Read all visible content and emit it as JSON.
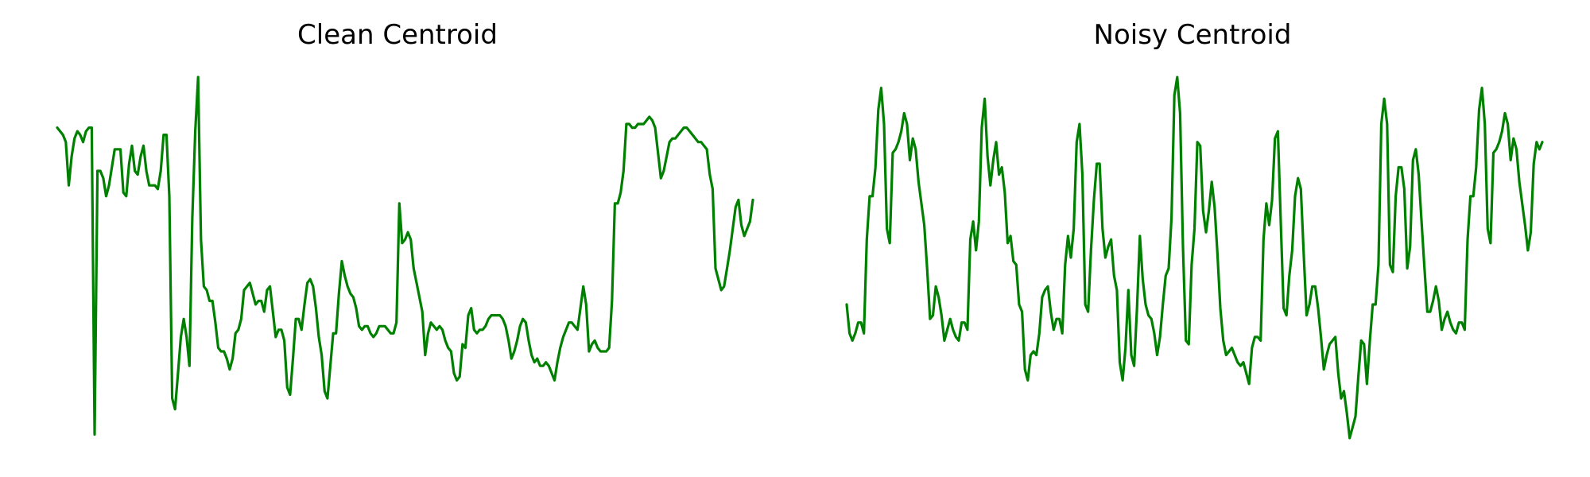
{
  "chart_data": [
    {
      "type": "line",
      "title": "Clean Centroid",
      "xlabel": "",
      "ylabel": "",
      "axes_visible": false,
      "grid": false,
      "color": "#008000",
      "ylim": [
        0,
        1
      ],
      "y": [
        0.86,
        0.85,
        0.84,
        0.82,
        0.7,
        0.78,
        0.83,
        0.85,
        0.84,
        0.82,
        0.85,
        0.86,
        0.86,
        0.01,
        0.74,
        0.74,
        0.72,
        0.67,
        0.7,
        0.75,
        0.8,
        0.8,
        0.8,
        0.68,
        0.67,
        0.76,
        0.81,
        0.74,
        0.73,
        0.78,
        0.81,
        0.74,
        0.7,
        0.7,
        0.7,
        0.69,
        0.74,
        0.84,
        0.84,
        0.67,
        0.11,
        0.08,
        0.18,
        0.28,
        0.33,
        0.28,
        0.2,
        0.61,
        0.85,
        1.0,
        0.55,
        0.42,
        0.41,
        0.38,
        0.38,
        0.32,
        0.25,
        0.24,
        0.24,
        0.22,
        0.19,
        0.22,
        0.29,
        0.3,
        0.33,
        0.41,
        0.42,
        0.43,
        0.4,
        0.37,
        0.38,
        0.38,
        0.35,
        0.41,
        0.42,
        0.35,
        0.28,
        0.3,
        0.3,
        0.27,
        0.14,
        0.12,
        0.22,
        0.33,
        0.33,
        0.3,
        0.37,
        0.43,
        0.44,
        0.42,
        0.36,
        0.28,
        0.23,
        0.13,
        0.11,
        0.2,
        0.29,
        0.29,
        0.4,
        0.49,
        0.45,
        0.42,
        0.4,
        0.39,
        0.36,
        0.31,
        0.3,
        0.31,
        0.31,
        0.29,
        0.28,
        0.29,
        0.31,
        0.31,
        0.31,
        0.3,
        0.29,
        0.29,
        0.32,
        0.65,
        0.54,
        0.55,
        0.57,
        0.55,
        0.47,
        0.43,
        0.39,
        0.35,
        0.23,
        0.29,
        0.32,
        0.31,
        0.3,
        0.31,
        0.3,
        0.27,
        0.25,
        0.24,
        0.18,
        0.16,
        0.17,
        0.26,
        0.25,
        0.34,
        0.36,
        0.3,
        0.29,
        0.3,
        0.3,
        0.31,
        0.33,
        0.34,
        0.34,
        0.34,
        0.34,
        0.33,
        0.31,
        0.27,
        0.22,
        0.24,
        0.27,
        0.31,
        0.33,
        0.32,
        0.27,
        0.23,
        0.21,
        0.22,
        0.2,
        0.2,
        0.21,
        0.2,
        0.18,
        0.16,
        0.21,
        0.25,
        0.28,
        0.3,
        0.32,
        0.32,
        0.31,
        0.3,
        0.36,
        0.42,
        0.37,
        0.24,
        0.26,
        0.27,
        0.25,
        0.24,
        0.24,
        0.24,
        0.25,
        0.38,
        0.65,
        0.65,
        0.68,
        0.74,
        0.87,
        0.87,
        0.86,
        0.86,
        0.87,
        0.87,
        0.87,
        0.88,
        0.89,
        0.88,
        0.86,
        0.79,
        0.72,
        0.74,
        0.78,
        0.82,
        0.83,
        0.83,
        0.84,
        0.85,
        0.86,
        0.86,
        0.85,
        0.84,
        0.83,
        0.82,
        0.82,
        0.81,
        0.8,
        0.73,
        0.69,
        0.47,
        0.44,
        0.41,
        0.42,
        0.47,
        0.52,
        0.58,
        0.64,
        0.66,
        0.59,
        0.56,
        0.58,
        0.6,
        0.66
      ]
    },
    {
      "type": "line",
      "title": "Noisy Centroid",
      "xlabel": "",
      "ylabel": "",
      "axes_visible": false,
      "grid": false,
      "color": "#008000",
      "ylim": [
        0,
        1
      ],
      "y": [
        0.37,
        0.29,
        0.27,
        0.29,
        0.32,
        0.32,
        0.29,
        0.55,
        0.67,
        0.67,
        0.75,
        0.91,
        0.97,
        0.87,
        0.58,
        0.54,
        0.79,
        0.8,
        0.82,
        0.85,
        0.9,
        0.87,
        0.77,
        0.83,
        0.8,
        0.71,
        0.65,
        0.59,
        0.47,
        0.33,
        0.34,
        0.42,
        0.39,
        0.34,
        0.27,
        0.3,
        0.33,
        0.3,
        0.28,
        0.27,
        0.32,
        0.32,
        0.3,
        0.55,
        0.6,
        0.52,
        0.6,
        0.86,
        0.94,
        0.78,
        0.7,
        0.77,
        0.82,
        0.73,
        0.75,
        0.68,
        0.54,
        0.56,
        0.49,
        0.48,
        0.37,
        0.35,
        0.19,
        0.16,
        0.23,
        0.24,
        0.23,
        0.29,
        0.39,
        0.41,
        0.42,
        0.35,
        0.3,
        0.33,
        0.33,
        0.29,
        0.48,
        0.56,
        0.5,
        0.58,
        0.82,
        0.87,
        0.73,
        0.37,
        0.35,
        0.52,
        0.66,
        0.76,
        0.76,
        0.58,
        0.5,
        0.53,
        0.55,
        0.45,
        0.41,
        0.21,
        0.16,
        0.25,
        0.41,
        0.23,
        0.2,
        0.36,
        0.56,
        0.44,
        0.37,
        0.34,
        0.33,
        0.29,
        0.23,
        0.28,
        0.37,
        0.45,
        0.47,
        0.61,
        0.95,
        1.0,
        0.9,
        0.53,
        0.27,
        0.26,
        0.48,
        0.58,
        0.82,
        0.81,
        0.63,
        0.57,
        0.63,
        0.71,
        0.64,
        0.51,
        0.36,
        0.27,
        0.23,
        0.24,
        0.25,
        0.23,
        0.21,
        0.2,
        0.21,
        0.18,
        0.15,
        0.25,
        0.28,
        0.28,
        0.27,
        0.55,
        0.65,
        0.59,
        0.66,
        0.83,
        0.85,
        0.6,
        0.36,
        0.34,
        0.45,
        0.52,
        0.67,
        0.72,
        0.69,
        0.51,
        0.34,
        0.37,
        0.42,
        0.42,
        0.36,
        0.28,
        0.19,
        0.23,
        0.26,
        0.27,
        0.28,
        0.18,
        0.11,
        0.13,
        0.07,
        0.0,
        0.03,
        0.06,
        0.17,
        0.27,
        0.26,
        0.15,
        0.27,
        0.37,
        0.37,
        0.48,
        0.87,
        0.94,
        0.87,
        0.48,
        0.46,
        0.67,
        0.75,
        0.75,
        0.69,
        0.47,
        0.53,
        0.77,
        0.8,
        0.73,
        0.6,
        0.47,
        0.35,
        0.35,
        0.38,
        0.42,
        0.38,
        0.3,
        0.33,
        0.35,
        0.32,
        0.3,
        0.29,
        0.32,
        0.32,
        0.3,
        0.55,
        0.67,
        0.67,
        0.75,
        0.91,
        0.97,
        0.87,
        0.58,
        0.54,
        0.79,
        0.8,
        0.82,
        0.85,
        0.9,
        0.87,
        0.77,
        0.83,
        0.8,
        0.71,
        0.65,
        0.59,
        0.52,
        0.57,
        0.76,
        0.82,
        0.8,
        0.82
      ]
    }
  ]
}
